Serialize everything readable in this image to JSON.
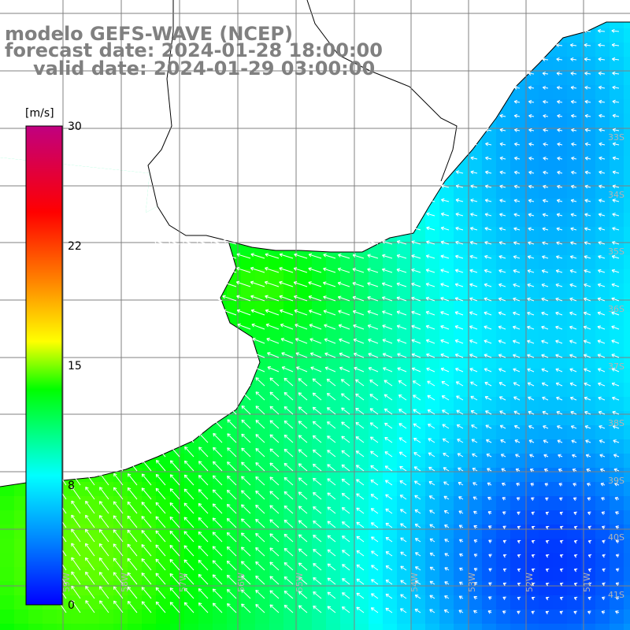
{
  "header": {
    "model": "modelo GEFS-WAVE (NCEP)",
    "forecast": "forecast date: 2024-01-28 18:00:00",
    "valid": "valid date: 2024-01-29 03:00:00"
  },
  "colorbar": {
    "unit": "[m/s]",
    "min": 0,
    "max": 30,
    "ticks": [
      {
        "value": 30,
        "label": "30"
      },
      {
        "value": 22,
        "label": "22"
      },
      {
        "value": 15,
        "label": "15"
      },
      {
        "value": 8,
        "label": "8"
      },
      {
        "value": 0,
        "label": "0"
      }
    ],
    "colors": [
      "#0000ff",
      "#0080ff",
      "#00ffff",
      "#00ff00",
      "#ffff00",
      "#ff8000",
      "#ff0000",
      "#c00080"
    ]
  },
  "map": {
    "field": "wind speed",
    "lon_range": [
      -60,
      -50
    ],
    "lat_range": [
      -41,
      -29
    ],
    "grid": true,
    "land_color": "#ffffff",
    "grid_color": "#808080",
    "coast_color": "#000000",
    "arrow_color": "#ffffff",
    "lat_labels": [
      "33S",
      "34S",
      "35S",
      "36S",
      "37S",
      "38S",
      "39S",
      "40S",
      "41S"
    ],
    "lon_labels": [
      "59W",
      "58W",
      "57W",
      "56W",
      "55W",
      "54W",
      "53W",
      "52W",
      "51W"
    ]
  }
}
